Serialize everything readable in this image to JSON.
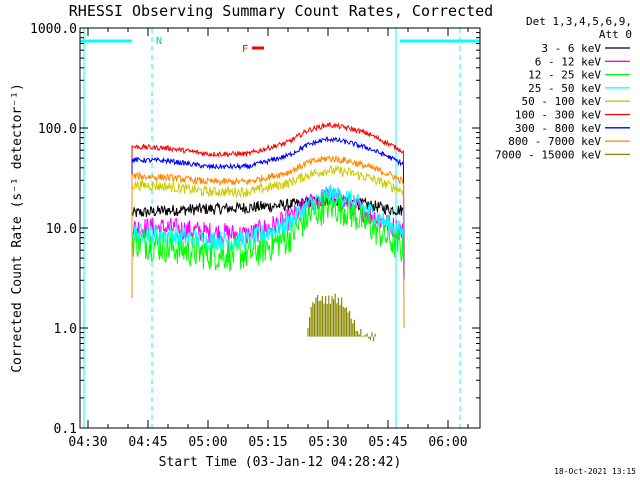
{
  "chart_data": {
    "type": "line",
    "title": "RHESSI Observing Summary Count Rates, Corrected",
    "xlabel": "Start Time (03-Jan-12 04:28:42)",
    "ylabel": "Corrected Count Rate (s⁻¹ detector⁻¹)",
    "y_scale": "log",
    "ylim": [
      0.1,
      1000
    ],
    "xlim": [
      "04:28",
      "06:08"
    ],
    "x_ticks": [
      "04:30",
      "04:45",
      "05:00",
      "05:15",
      "05:30",
      "05:45",
      "06:00"
    ],
    "y_ticks": [
      "0.1",
      "1.0",
      "10.0",
      "100.0",
      "1000.0"
    ],
    "legend_title": [
      "Det 1,3,4,5,6,9,",
      "Att 0"
    ],
    "legend_position": "right",
    "footer_date": "18-Oct-2021 13:15",
    "night_intervals": [
      {
        "start": "04:28",
        "end": "04:41"
      },
      {
        "start": "05:48",
        "end": "06:08"
      }
    ],
    "saa_flag": {
      "label": "N",
      "time": "04:46"
    },
    "flare_flag": {
      "label": "F",
      "time": "05:11"
    },
    "vertical_markers": {
      "solid": [
        "04:29",
        "05:47"
      ],
      "dashed": [
        "04:46",
        "06:03"
      ]
    },
    "series": [
      {
        "name": "3 - 6 keV",
        "color": "#000000",
        "x": [
          "04:41",
          "04:50",
          "05:00",
          "05:10",
          "05:20",
          "05:25",
          "05:30",
          "05:35",
          "05:40",
          "05:45",
          "05:49"
        ],
        "values": [
          14,
          15,
          15.5,
          16,
          17,
          18,
          19,
          18,
          17,
          15.5,
          15
        ]
      },
      {
        "name": "6 - 12 keV",
        "color": "#ff00ff",
        "x": [
          "04:41",
          "04:50",
          "05:00",
          "05:10",
          "05:20",
          "05:25",
          "05:30",
          "05:35",
          "05:40",
          "05:45",
          "05:49"
        ],
        "values": [
          10,
          10,
          9,
          8.5,
          12,
          17,
          21,
          18,
          14,
          11,
          9
        ]
      },
      {
        "name": "12 - 25 keV",
        "color": "#00ff00",
        "x": [
          "04:41",
          "04:50",
          "05:00",
          "05:10",
          "05:20",
          "05:25",
          "05:30",
          "05:35",
          "05:40",
          "05:45",
          "05:49"
        ],
        "values": [
          7.5,
          6.5,
          5.5,
          5.5,
          8,
          13,
          17,
          15,
          11,
          8,
          6
        ]
      },
      {
        "name": "25 - 50 keV",
        "color": "#00ffff",
        "x": [
          "04:41",
          "04:50",
          "05:00",
          "05:10",
          "05:20",
          "05:25",
          "05:30",
          "05:35",
          "05:40",
          "05:45",
          "05:49"
        ],
        "values": [
          9,
          8.5,
          7.5,
          7.5,
          11,
          17,
          22,
          20,
          15,
          11,
          9
        ]
      },
      {
        "name": "50 - 100 keV",
        "color": "#cccc00",
        "x": [
          "04:41",
          "04:50",
          "05:00",
          "05:10",
          "05:20",
          "05:25",
          "05:30",
          "05:35",
          "05:40",
          "05:45",
          "05:49"
        ],
        "values": [
          27,
          26,
          23,
          23,
          28,
          34,
          38,
          36,
          32,
          27,
          23
        ]
      },
      {
        "name": "100 - 300 keV",
        "color": "#ff0000",
        "x": [
          "04:41",
          "04:50",
          "05:00",
          "05:10",
          "05:20",
          "05:25",
          "05:30",
          "05:35",
          "05:40",
          "05:45",
          "05:49"
        ],
        "values": [
          65,
          63,
          55,
          55,
          72,
          95,
          108,
          100,
          88,
          70,
          58
        ]
      },
      {
        "name": "300 - 800 keV",
        "color": "#0000ff",
        "x": [
          "04:41",
          "04:50",
          "05:00",
          "05:10",
          "05:20",
          "05:25",
          "05:30",
          "05:35",
          "05:40",
          "05:45",
          "05:49"
        ],
        "values": [
          48,
          47,
          41,
          41,
          53,
          68,
          78,
          72,
          63,
          52,
          43
        ]
      },
      {
        "name": "800 - 7000 keV",
        "color": "#ff8800",
        "x": [
          "04:41",
          "04:50",
          "05:00",
          "05:10",
          "05:20",
          "05:25",
          "05:30",
          "05:35",
          "05:40",
          "05:45",
          "05:49"
        ],
        "values": [
          33,
          32,
          29,
          29,
          36,
          45,
          50,
          47,
          41,
          35,
          29
        ]
      },
      {
        "name": "7000 - 15000 keV",
        "color": "#888800",
        "x": [
          "05:25",
          "05:26",
          "05:28",
          "05:30",
          "05:32",
          "05:34",
          "05:36",
          "05:38",
          "05:40",
          "05:42"
        ],
        "values": [
          0.9,
          1.8,
          2.0,
          1.9,
          2.0,
          1.8,
          1.2,
          0.9,
          0.85,
          0.8
        ]
      }
    ]
  }
}
